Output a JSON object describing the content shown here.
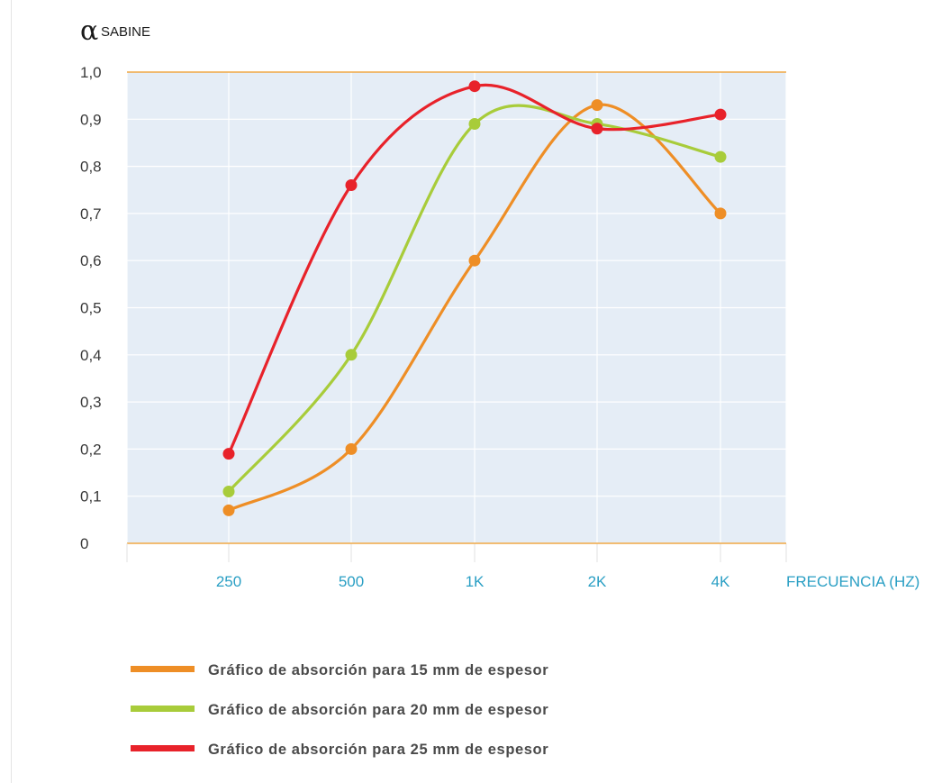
{
  "chart_data": {
    "type": "line",
    "title": "",
    "y_symbol": "α",
    "ylabel": "SABINE",
    "xlabel": "FRECUENCIA (HZ)",
    "categories": [
      "250",
      "500",
      "1K",
      "2K",
      "4K"
    ],
    "yticks": [
      "0",
      "0,1",
      "0,2",
      "0,3",
      "0,4",
      "0,5",
      "0,6",
      "0,7",
      "0,8",
      "0,9",
      "1,0"
    ],
    "ylim": [
      0,
      1.0
    ],
    "grid": true,
    "legend_position": "bottom-left",
    "plot_background": "#e5edf6",
    "axis_color": "#f0a845",
    "series": [
      {
        "name": "Gráfico de absorción para 15 mm de espesor",
        "color": "#ee8e26",
        "values": [
          0.07,
          0.2,
          0.6,
          0.93,
          0.7
        ]
      },
      {
        "name": "Gráfico de absorción para 20 mm de espesor",
        "color": "#a8cc3a",
        "values": [
          0.11,
          0.4,
          0.89,
          0.89,
          0.82
        ]
      },
      {
        "name": "Gráfico de absorción para 25 mm de espesor",
        "color": "#e8222a",
        "values": [
          0.19,
          0.76,
          0.97,
          0.88,
          0.91
        ]
      }
    ]
  }
}
